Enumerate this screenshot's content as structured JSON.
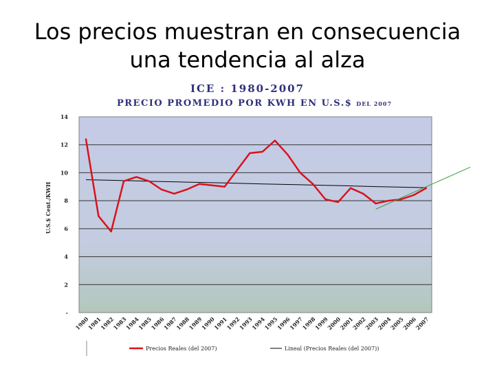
{
  "slide": {
    "title_line1": "Los precios muestran en consecuencia",
    "title_line2": "una tendencia al alza"
  },
  "chart_data": {
    "type": "line",
    "title": "ICE : 1980-2007",
    "subtitle": "PRECIO PROMEDIO POR KWH EN U.S.$",
    "subtitle_note": "DEL 2007",
    "xlabel": "",
    "ylabel": "U.S.$ Cent./KWH",
    "x": [
      "1980",
      "1981",
      "1982",
      "1983",
      "1984",
      "1985",
      "1986",
      "1987",
      "1988",
      "1989",
      "1990",
      "1991",
      "1992",
      "1993",
      "1994",
      "1995",
      "1996",
      "1997",
      "1998",
      "1999",
      "2000",
      "2001",
      "2002",
      "2003",
      "2004",
      "2005",
      "2006",
      "2007"
    ],
    "ylim": [
      0,
      14
    ],
    "yticks": [
      0,
      2,
      4,
      6,
      8,
      10,
      12,
      14
    ],
    "ytick_labels": [
      "-",
      "2",
      "4",
      "6",
      "8",
      "10",
      "12",
      "14"
    ],
    "grid": true,
    "legend_position": "bottom",
    "series": [
      {
        "name": "Precios Reales (del 2007)",
        "color": "#d9121b",
        "values": [
          12.4,
          6.9,
          5.8,
          9.4,
          9.7,
          9.4,
          8.8,
          8.5,
          8.8,
          9.2,
          9.1,
          9.0,
          10.2,
          11.4,
          11.5,
          12.3,
          11.3,
          10.0,
          9.2,
          8.1,
          7.9,
          8.9,
          8.5,
          7.8,
          8.0,
          8.1,
          8.4,
          8.9
        ]
      },
      {
        "name": "Lineal (Precios Reales (del 2007))",
        "color": "#000000",
        "values": [
          9.5,
          9.48,
          9.46,
          9.44,
          9.42,
          9.39,
          9.37,
          9.35,
          9.33,
          9.31,
          9.29,
          9.27,
          9.25,
          9.22,
          9.2,
          9.18,
          9.16,
          9.14,
          9.12,
          9.1,
          9.08,
          9.06,
          9.03,
          9.01,
          8.99,
          8.97,
          8.95,
          8.93
        ]
      }
    ],
    "colors": {
      "plot_top": "#c5cbe6",
      "plot_bottom": "#b6c8bf",
      "annotation_line": "#3a9a3a"
    }
  }
}
